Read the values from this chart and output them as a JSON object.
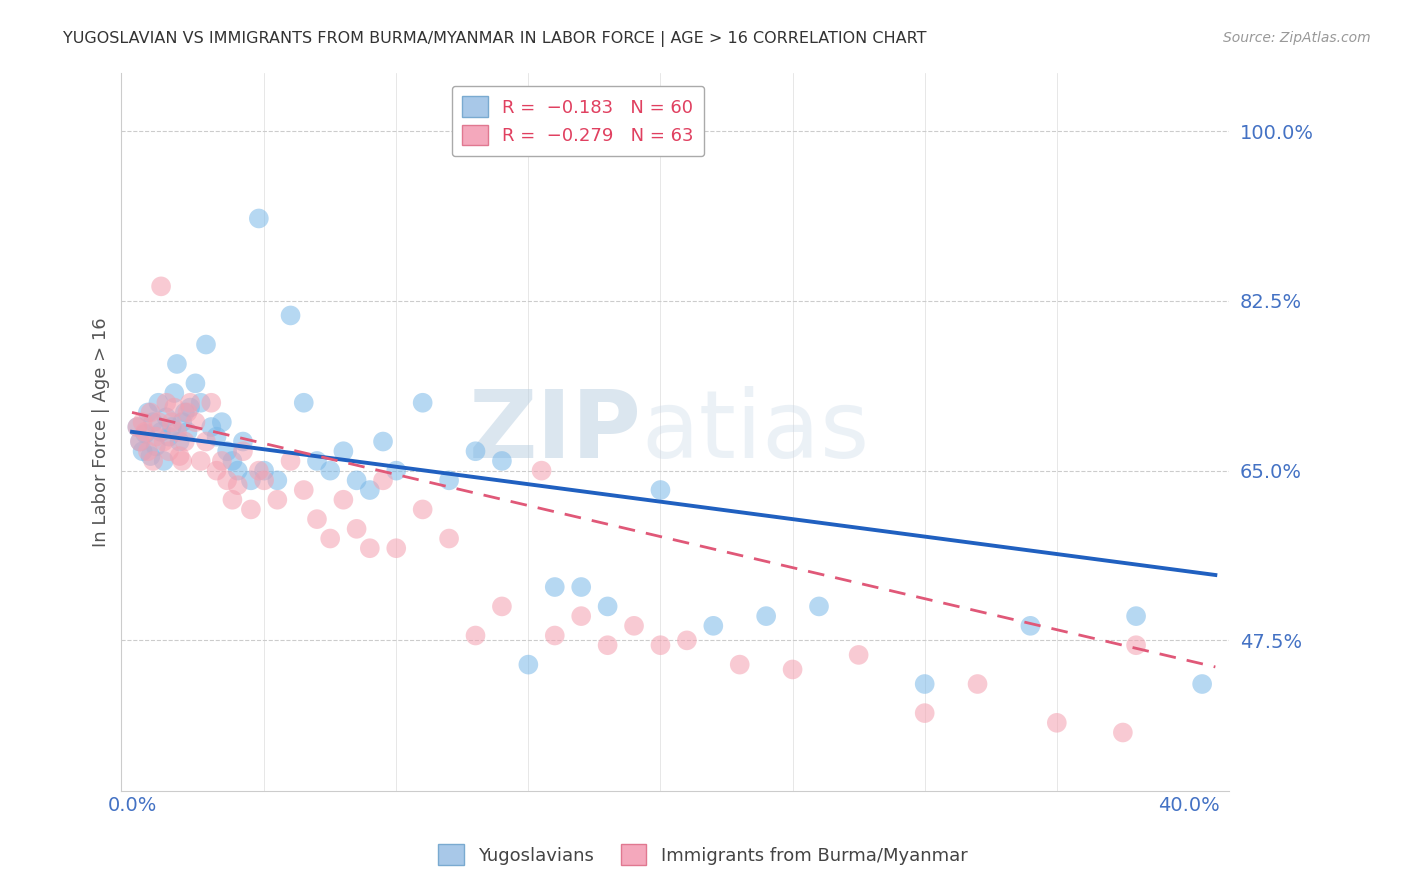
{
  "title": "YUGOSLAVIAN VS IMMIGRANTS FROM BURMA/MYANMAR IN LABOR FORCE | AGE > 16 CORRELATION CHART",
  "source": "Source: ZipAtlas.com",
  "ylabel": "In Labor Force | Age > 16",
  "ytick_labels": [
    "100.0%",
    "82.5%",
    "65.0%",
    "47.5%"
  ],
  "ytick_values": [
    1.0,
    0.825,
    0.65,
    0.475
  ],
  "ylim": [
    0.32,
    1.06
  ],
  "xlim": [
    -0.004,
    0.415
  ],
  "series1_color": "#7ab8e8",
  "series2_color": "#f4a0b0",
  "trend1_color": "#2060c0",
  "trend2_color": "#e05878",
  "watermark": "ZIPatlas",
  "background_color": "#ffffff",
  "grid_color": "#cccccc",
  "title_color": "#333333",
  "ytick_color": "#4472c4",
  "xtick_color": "#4472c4",
  "source_color": "#999999",
  "blue_intercept": 0.69,
  "blue_slope": -0.36,
  "pink_intercept": 0.71,
  "pink_slope": -0.64,
  "blue_pts": [
    [
      0.002,
      0.695
    ],
    [
      0.003,
      0.68
    ],
    [
      0.004,
      0.67
    ],
    [
      0.005,
      0.688
    ],
    [
      0.006,
      0.71
    ],
    [
      0.007,
      0.665
    ],
    [
      0.008,
      0.7
    ],
    [
      0.009,
      0.675
    ],
    [
      0.01,
      0.72
    ],
    [
      0.011,
      0.69
    ],
    [
      0.012,
      0.66
    ],
    [
      0.013,
      0.705
    ],
    [
      0.014,
      0.685
    ],
    [
      0.015,
      0.695
    ],
    [
      0.016,
      0.73
    ],
    [
      0.017,
      0.76
    ],
    [
      0.018,
      0.68
    ],
    [
      0.019,
      0.7
    ],
    [
      0.02,
      0.71
    ],
    [
      0.021,
      0.69
    ],
    [
      0.022,
      0.715
    ],
    [
      0.024,
      0.74
    ],
    [
      0.026,
      0.72
    ],
    [
      0.028,
      0.78
    ],
    [
      0.03,
      0.695
    ],
    [
      0.032,
      0.685
    ],
    [
      0.034,
      0.7
    ],
    [
      0.036,
      0.67
    ],
    [
      0.038,
      0.66
    ],
    [
      0.04,
      0.65
    ],
    [
      0.042,
      0.68
    ],
    [
      0.045,
      0.64
    ],
    [
      0.048,
      0.91
    ],
    [
      0.05,
      0.65
    ],
    [
      0.055,
      0.64
    ],
    [
      0.06,
      0.81
    ],
    [
      0.065,
      0.72
    ],
    [
      0.07,
      0.66
    ],
    [
      0.075,
      0.65
    ],
    [
      0.08,
      0.67
    ],
    [
      0.085,
      0.64
    ],
    [
      0.09,
      0.63
    ],
    [
      0.095,
      0.68
    ],
    [
      0.1,
      0.65
    ],
    [
      0.11,
      0.72
    ],
    [
      0.12,
      0.64
    ],
    [
      0.13,
      0.67
    ],
    [
      0.14,
      0.66
    ],
    [
      0.15,
      0.45
    ],
    [
      0.16,
      0.53
    ],
    [
      0.17,
      0.53
    ],
    [
      0.18,
      0.51
    ],
    [
      0.2,
      0.63
    ],
    [
      0.22,
      0.49
    ],
    [
      0.24,
      0.5
    ],
    [
      0.26,
      0.51
    ],
    [
      0.3,
      0.43
    ],
    [
      0.34,
      0.49
    ],
    [
      0.38,
      0.5
    ],
    [
      0.405,
      0.43
    ]
  ],
  "pink_pts": [
    [
      0.002,
      0.695
    ],
    [
      0.003,
      0.68
    ],
    [
      0.004,
      0.7
    ],
    [
      0.005,
      0.69
    ],
    [
      0.006,
      0.67
    ],
    [
      0.007,
      0.71
    ],
    [
      0.008,
      0.66
    ],
    [
      0.009,
      0.685
    ],
    [
      0.01,
      0.7
    ],
    [
      0.011,
      0.84
    ],
    [
      0.012,
      0.68
    ],
    [
      0.013,
      0.72
    ],
    [
      0.014,
      0.67
    ],
    [
      0.015,
      0.7
    ],
    [
      0.016,
      0.715
    ],
    [
      0.017,
      0.69
    ],
    [
      0.018,
      0.665
    ],
    [
      0.019,
      0.66
    ],
    [
      0.02,
      0.68
    ],
    [
      0.021,
      0.71
    ],
    [
      0.022,
      0.72
    ],
    [
      0.024,
      0.7
    ],
    [
      0.026,
      0.66
    ],
    [
      0.028,
      0.68
    ],
    [
      0.03,
      0.72
    ],
    [
      0.032,
      0.65
    ],
    [
      0.034,
      0.66
    ],
    [
      0.036,
      0.64
    ],
    [
      0.038,
      0.62
    ],
    [
      0.04,
      0.635
    ],
    [
      0.042,
      0.67
    ],
    [
      0.045,
      0.61
    ],
    [
      0.048,
      0.65
    ],
    [
      0.05,
      0.64
    ],
    [
      0.055,
      0.62
    ],
    [
      0.06,
      0.66
    ],
    [
      0.065,
      0.63
    ],
    [
      0.07,
      0.6
    ],
    [
      0.075,
      0.58
    ],
    [
      0.08,
      0.62
    ],
    [
      0.085,
      0.59
    ],
    [
      0.09,
      0.57
    ],
    [
      0.095,
      0.64
    ],
    [
      0.1,
      0.57
    ],
    [
      0.11,
      0.61
    ],
    [
      0.12,
      0.58
    ],
    [
      0.13,
      0.48
    ],
    [
      0.14,
      0.51
    ],
    [
      0.155,
      0.65
    ],
    [
      0.16,
      0.48
    ],
    [
      0.17,
      0.5
    ],
    [
      0.18,
      0.47
    ],
    [
      0.19,
      0.49
    ],
    [
      0.2,
      0.47
    ],
    [
      0.21,
      0.475
    ],
    [
      0.23,
      0.45
    ],
    [
      0.25,
      0.445
    ],
    [
      0.275,
      0.46
    ],
    [
      0.3,
      0.4
    ],
    [
      0.32,
      0.43
    ],
    [
      0.35,
      0.39
    ],
    [
      0.375,
      0.38
    ],
    [
      0.38,
      0.47
    ]
  ]
}
